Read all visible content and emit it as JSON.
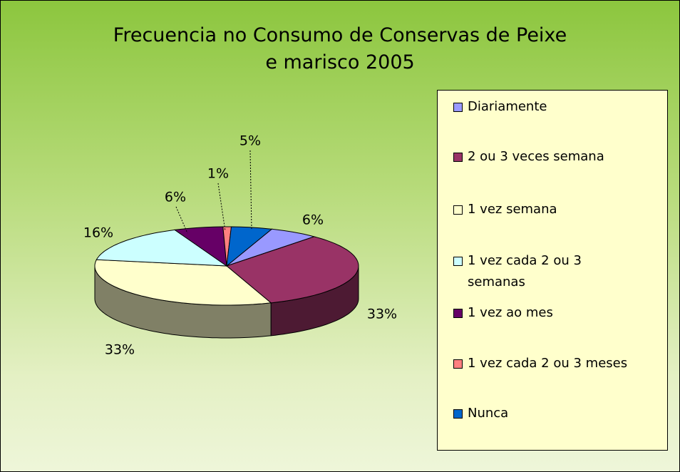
{
  "chart_data": {
    "type": "pie3d",
    "title": "Frecuencia no Consumo de Conservas de Peixe\ne marisco 2005",
    "categories": [
      "Diariamente",
      "2 ou 3 veces semana",
      "1 vez semana",
      "1 vez cada 2 ou 3 semanas",
      "1 vez ao mes",
      "1 vez cada 2 ou 3 meses",
      "Nunca"
    ],
    "values": [
      6,
      33,
      33,
      16,
      6,
      1,
      5
    ],
    "value_labels": [
      "6%",
      "33%",
      "33%",
      "16%",
      "6%",
      "1%",
      "5%"
    ],
    "colors": [
      "#9999ff",
      "#993366",
      "#ffffcc",
      "#ccffff",
      "#660066",
      "#ff8080",
      "#0066cc"
    ],
    "legend": "right"
  }
}
